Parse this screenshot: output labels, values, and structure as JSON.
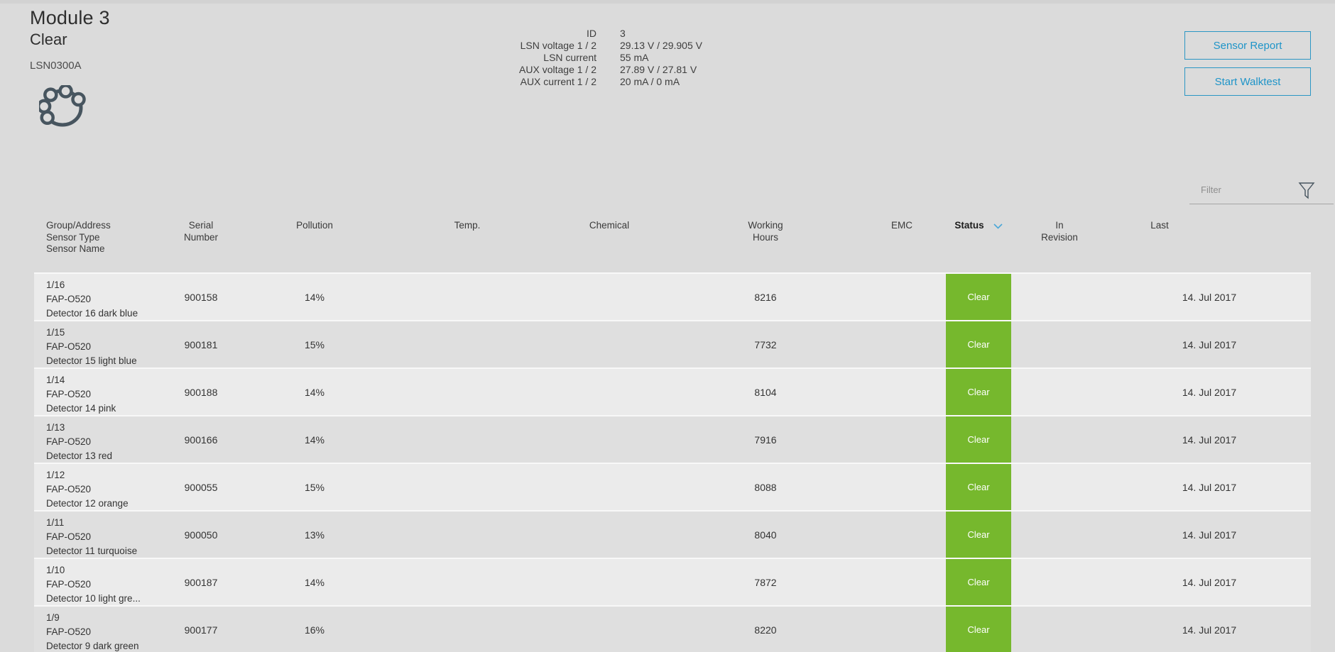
{
  "colors": {
    "page_background": "#dbdbdb",
    "accent_blue": "#1e94c8",
    "status_green": "#76b82d",
    "icon_slate": "#47555f"
  },
  "header": {
    "title": "Module 3",
    "state": "Clear",
    "code": "LSN0300A",
    "info": [
      {
        "label": "ID",
        "value": "3"
      },
      {
        "label": "LSN voltage 1 / 2",
        "value": "29.13 V / 29.905 V"
      },
      {
        "label": "LSN current",
        "value": "55 mA"
      },
      {
        "label": "AUX voltage 1 / 2",
        "value": "27.89 V / 27.81 V"
      },
      {
        "label": "AUX current 1 / 2",
        "value": "20 mA / 0 mA"
      }
    ],
    "buttons": [
      {
        "label": "Sensor Report"
      },
      {
        "label": "Start Walktest"
      }
    ]
  },
  "filter": {
    "placeholder": "Filter"
  },
  "table": {
    "columns": [
      {
        "key": "group-address",
        "lines": [
          "Group/Address",
          "Sensor Type",
          "Sensor Name"
        ],
        "align": "left"
      },
      {
        "key": "serial-number",
        "lines": [
          "Serial",
          "Number"
        ]
      },
      {
        "key": "pollution",
        "lines": [
          "Pollution"
        ]
      },
      {
        "key": "temp",
        "lines": [
          "Temp."
        ]
      },
      {
        "key": "chemical",
        "lines": [
          "Chemical"
        ]
      },
      {
        "key": "working-hours",
        "lines": [
          "Working",
          "Hours"
        ]
      },
      {
        "key": "emc",
        "lines": [
          "EMC"
        ]
      },
      {
        "key": "status",
        "lines": [
          "Status"
        ],
        "bold": true,
        "sorted": "desc"
      },
      {
        "key": "in-revision",
        "lines": [
          "In",
          "Revision"
        ]
      },
      {
        "key": "last",
        "lines": [
          "Last"
        ],
        "pad_right": true
      }
    ],
    "rows": [
      {
        "group_address": "1/16",
        "sensor_type": "FAP-O520",
        "sensor_name": "Detector 16 dark blue",
        "serial": "900158",
        "pollution": "14%",
        "temp": "",
        "chemical": "",
        "working_hours": "8216",
        "emc": "",
        "status": "Clear",
        "in_revision": "",
        "last": "14. Jul 2017"
      },
      {
        "group_address": "1/15",
        "sensor_type": "FAP-O520",
        "sensor_name": "Detector 15 light blue",
        "serial": "900181",
        "pollution": "15%",
        "temp": "",
        "chemical": "",
        "working_hours": "7732",
        "emc": "",
        "status": "Clear",
        "in_revision": "",
        "last": "14. Jul 2017"
      },
      {
        "group_address": "1/14",
        "sensor_type": "FAP-O520",
        "sensor_name": "Detector 14 pink",
        "serial": "900188",
        "pollution": "14%",
        "temp": "",
        "chemical": "",
        "working_hours": "8104",
        "emc": "",
        "status": "Clear",
        "in_revision": "",
        "last": "14. Jul 2017"
      },
      {
        "group_address": "1/13",
        "sensor_type": "FAP-O520",
        "sensor_name": "Detector 13 red",
        "serial": "900166",
        "pollution": "14%",
        "temp": "",
        "chemical": "",
        "working_hours": "7916",
        "emc": "",
        "status": "Clear",
        "in_revision": "",
        "last": "14. Jul 2017"
      },
      {
        "group_address": "1/12",
        "sensor_type": "FAP-O520",
        "sensor_name": "Detector 12 orange",
        "serial": "900055",
        "pollution": "15%",
        "temp": "",
        "chemical": "",
        "working_hours": "8088",
        "emc": "",
        "status": "Clear",
        "in_revision": "",
        "last": "14. Jul 2017"
      },
      {
        "group_address": "1/11",
        "sensor_type": "FAP-O520",
        "sensor_name": "Detector 11 turquoise",
        "serial": "900050",
        "pollution": "13%",
        "temp": "",
        "chemical": "",
        "working_hours": "8040",
        "emc": "",
        "status": "Clear",
        "in_revision": "",
        "last": "14. Jul 2017"
      },
      {
        "group_address": "1/10",
        "sensor_type": "FAP-O520",
        "sensor_name": "Detector 10 light gre...",
        "serial": "900187",
        "pollution": "14%",
        "temp": "",
        "chemical": "",
        "working_hours": "7872",
        "emc": "",
        "status": "Clear",
        "in_revision": "",
        "last": "14. Jul 2017"
      },
      {
        "group_address": "1/9",
        "sensor_type": "FAP-O520",
        "sensor_name": "Detector 9 dark green",
        "serial": "900177",
        "pollution": "16%",
        "temp": "",
        "chemical": "",
        "working_hours": "8220",
        "emc": "",
        "status": "Clear",
        "in_revision": "",
        "last": "14. Jul 2017"
      }
    ]
  }
}
